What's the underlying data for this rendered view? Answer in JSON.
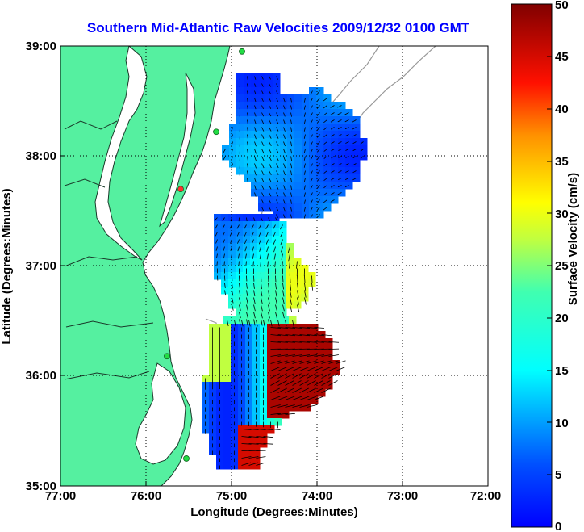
{
  "map": {
    "title": "Southern Mid-Atlantic Raw Velocities 2009/12/32 0100 GMT",
    "title_color": "#0000ff",
    "xlabel": "Longitude (Degrees:Minutes)",
    "ylabel": "Latitude (Degrees:Minutes)",
    "x_ticks": [
      "77:00",
      "76:00",
      "75:00",
      "74:00",
      "73:00",
      "72:00"
    ],
    "y_ticks": [
      "39:00",
      "38:00",
      "37:00",
      "36:00",
      "35:00"
    ],
    "lon_range": [
      -77,
      -72
    ],
    "lat_range": [
      35,
      39
    ],
    "land_color": "#55f0a0",
    "grid": "dotted"
  },
  "colorbar": {
    "label": "Surface Velocity (cm/s)",
    "ticks": [
      "50",
      "45",
      "40",
      "35",
      "30",
      "25",
      "20",
      "15",
      "10",
      "5",
      "0"
    ],
    "range": [
      0,
      50
    ],
    "colormap": "jet"
  },
  "stations": [
    {
      "lat": 38.95,
      "color": "#22dd44"
    },
    {
      "lat": 38.22,
      "color": "#22dd44"
    },
    {
      "lat": 37.7,
      "color": "#ff3030"
    },
    {
      "lat": 36.18,
      "color": "#22dd44"
    },
    {
      "lat": 35.25,
      "color": "#22dd44"
    }
  ]
}
